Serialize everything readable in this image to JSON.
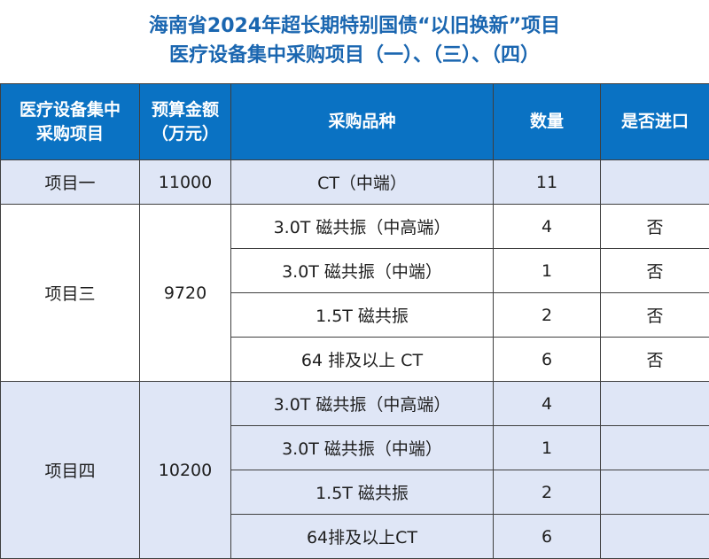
{
  "title": {
    "line1": "海南省2024年超长期特别国债“以旧换新”项目",
    "line2": "医疗设备集中采购项目（一）、（三）、（四）"
  },
  "colors": {
    "title_text": "#1a66b0",
    "header_bg": "#0a72c3",
    "header_text": "#ffffff",
    "band_light": "#dfe6f6",
    "band_white": "#ffffff",
    "grid": "#3f3f3f"
  },
  "table": {
    "headers": {
      "project_line1": "医疗设备集中",
      "project_line2": "采购项目",
      "budget_line1": "预算金额",
      "budget_line2": "（万元）",
      "item": "采购品种",
      "quantity": "数量",
      "imported": "是否进口"
    },
    "groups": [
      {
        "project": "项目一",
        "budget": "11000",
        "rows": [
          {
            "item": "CT（中端）",
            "quantity": "11",
            "imported": ""
          }
        ]
      },
      {
        "project": "项目三",
        "budget": "9720",
        "rows": [
          {
            "item": "3.0T 磁共振（中高端）",
            "quantity": "4",
            "imported": "否"
          },
          {
            "item": "3.0T 磁共振（中端）",
            "quantity": "1",
            "imported": "否"
          },
          {
            "item": "1.5T 磁共振",
            "quantity": "2",
            "imported": "否"
          },
          {
            "item": "64 排及以上 CT",
            "quantity": "6",
            "imported": "否"
          }
        ]
      },
      {
        "project": "项目四",
        "budget": "10200",
        "rows": [
          {
            "item": "3.0T 磁共振（中高端）",
            "quantity": "4",
            "imported": ""
          },
          {
            "item": "3.0T 磁共振（中端）",
            "quantity": "1",
            "imported": ""
          },
          {
            "item": "1.5T 磁共振",
            "quantity": "2",
            "imported": ""
          },
          {
            "item": "64排及以上CT",
            "quantity": "6",
            "imported": ""
          }
        ]
      }
    ]
  }
}
